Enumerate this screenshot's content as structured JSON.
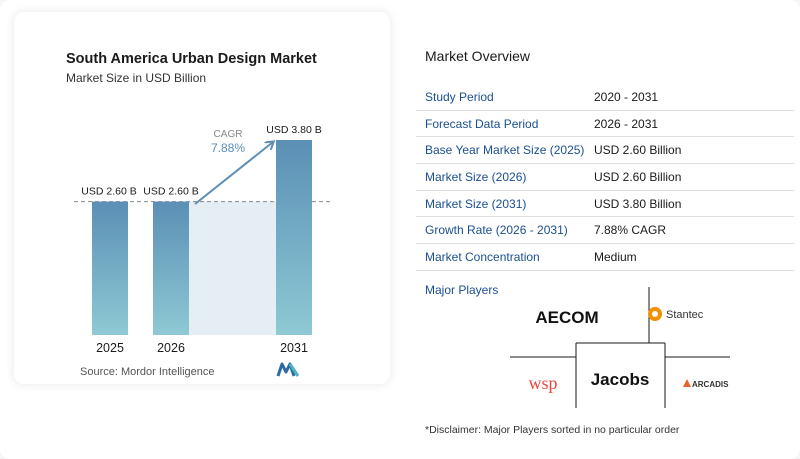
{
  "chart_data": {
    "type": "bar",
    "title": "South America Urban Design Market",
    "subtitle": "Market Size in USD Billion",
    "categories": [
      "2025",
      "2026",
      "2031"
    ],
    "values": [
      2.6,
      2.6,
      3.8
    ],
    "data_labels": [
      "USD 2.60 B",
      "USD 2.60 B",
      "USD 3.80 B"
    ],
    "cagr_label": "CAGR",
    "cagr_value": "7.88%",
    "ylim": [
      0,
      4.3
    ],
    "bar_color": "#5b8fb5",
    "bar_color_light": "#8ec9d4",
    "shade_color": "#e6eef5"
  },
  "source": "Source:  Mordor Intelligence",
  "overview": {
    "title": "Market Overview",
    "rows": [
      {
        "label": "Study Period",
        "value": "2020 - 2031"
      },
      {
        "label": "Forecast Data Period",
        "value": "2026 - 2031"
      },
      {
        "label": "Base Year Market Size (2025)",
        "value": "USD 2.60 Billion"
      },
      {
        "label": "Market Size (2026)",
        "value": "USD 2.60 Billion"
      },
      {
        "label": "Market Size (2031)",
        "value": "USD 3.80 Billion"
      },
      {
        "label": "Growth Rate (2026 - 2031)",
        "value": "7.88% CAGR"
      },
      {
        "label": "Market Concentration",
        "value": "Medium"
      }
    ]
  },
  "major_players": {
    "title": "Major Players",
    "logos": [
      "AECOM",
      "Stantec",
      "wsp",
      "Jacobs",
      "ARCADIS"
    ]
  },
  "disclaimer": "*Disclaimer: Major Players sorted in no particular order"
}
